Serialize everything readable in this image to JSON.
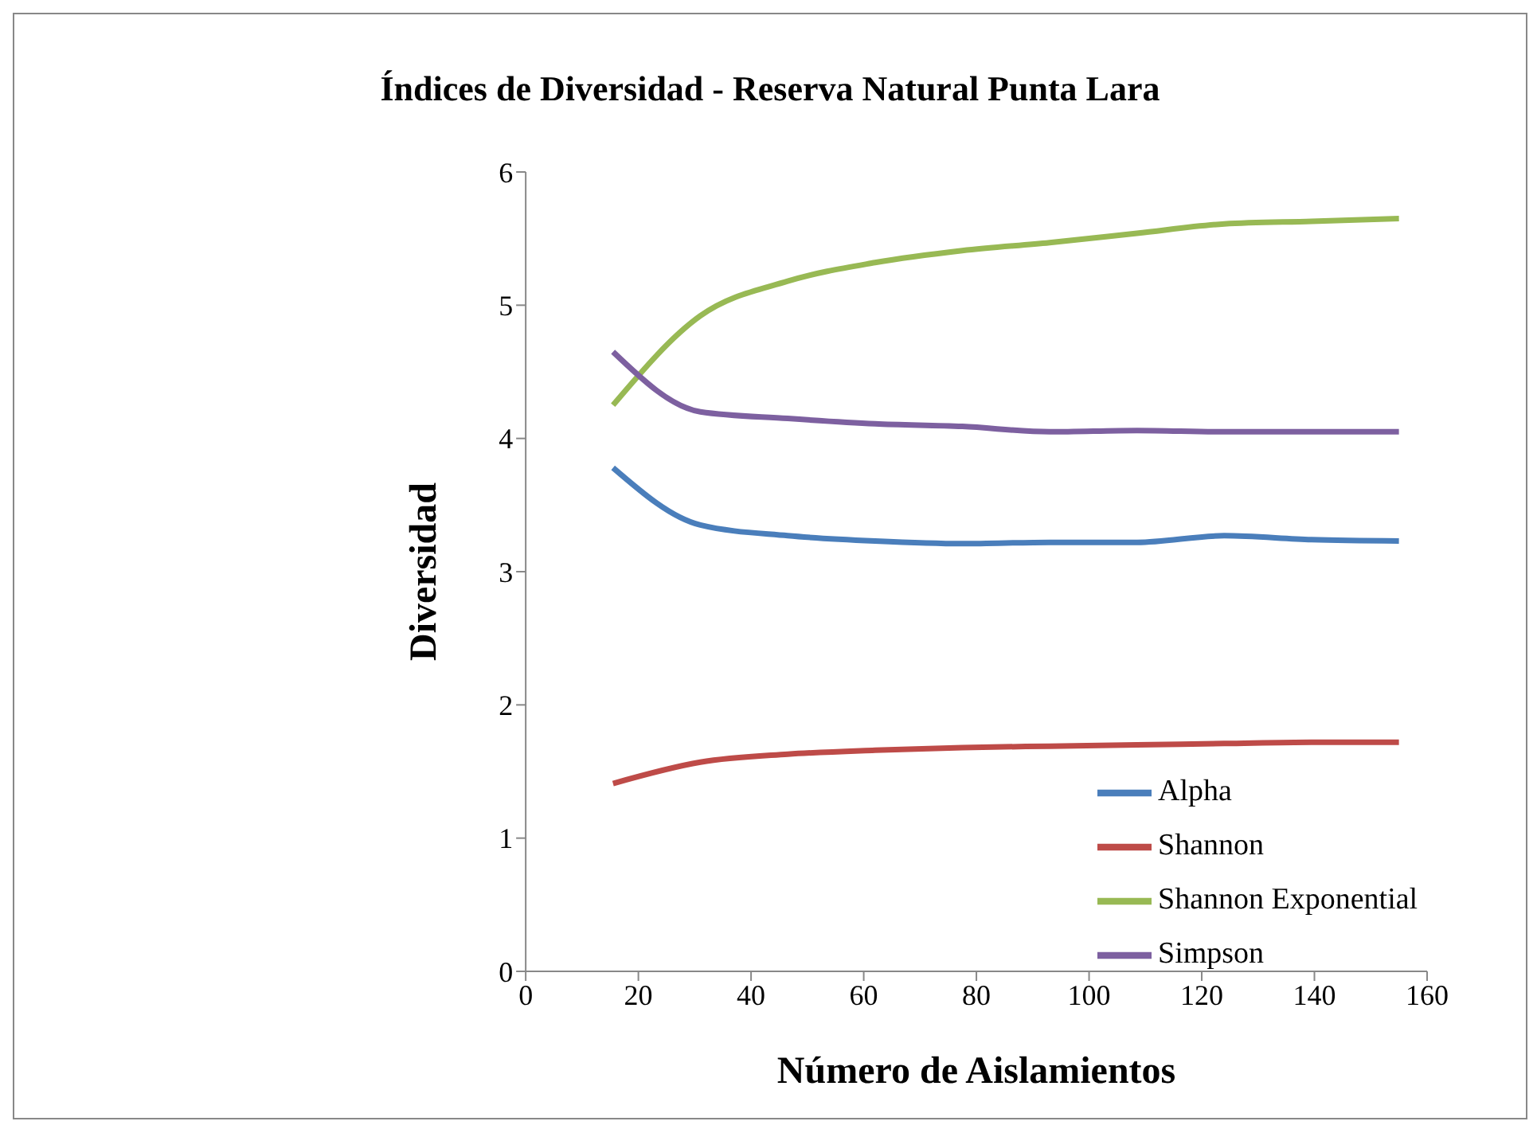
{
  "chart_data": {
    "type": "line",
    "title": "Índices de Diversidad - Reserva Natural Punta Lara",
    "xlabel": "Número de Aislamientos",
    "ylabel": "Diversidad",
    "x": [
      15.5,
      31,
      46.5,
      62,
      77.5,
      93,
      108.5,
      124,
      139.5,
      155
    ],
    "series": [
      {
        "name": "Alpha",
        "color": "#4a7ebb",
        "values": [
          3.78,
          3.35,
          3.27,
          3.23,
          3.21,
          3.22,
          3.22,
          3.27,
          3.24,
          3.23
        ]
      },
      {
        "name": "Shannon",
        "color": "#be4b48",
        "values": [
          1.41,
          1.57,
          1.63,
          1.66,
          1.68,
          1.69,
          1.7,
          1.71,
          1.72,
          1.72
        ]
      },
      {
        "name": "Shannon Exponential",
        "color": "#98b954",
        "values": [
          4.25,
          4.92,
          5.18,
          5.32,
          5.41,
          5.47,
          5.54,
          5.61,
          5.63,
          5.65
        ]
      },
      {
        "name": "Simpson",
        "color": "#7d60a0",
        "values": [
          4.65,
          4.2,
          4.15,
          4.11,
          4.09,
          4.05,
          4.06,
          4.05,
          4.05,
          4.05
        ]
      }
    ],
    "xlim": [
      0,
      160
    ],
    "xticks": [
      0,
      20,
      40,
      60,
      80,
      100,
      120,
      140,
      160
    ],
    "ylim": [
      0,
      6
    ],
    "yticks": [
      0,
      1,
      2,
      3,
      4,
      5,
      6
    ],
    "grid": false,
    "legend": "bottom right",
    "marker": "none",
    "line_style": "solid"
  }
}
